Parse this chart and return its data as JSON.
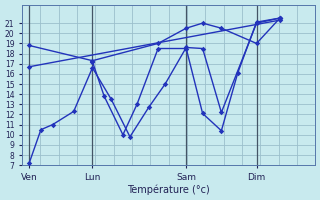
{
  "bg_color": "#c8eaee",
  "grid_color": "#9bbfcc",
  "line_color": "#2233bb",
  "xlabel": "Température (°c)",
  "ylim": [
    7,
    22
  ],
  "yticks": [
    7,
    8,
    9,
    10,
    11,
    12,
    13,
    14,
    15,
    16,
    17,
    18,
    19,
    20,
    21
  ],
  "xtick_labels": [
    "Ven",
    "Lun",
    "Sam",
    "Dim"
  ],
  "vline_positions": [
    0,
    27,
    67,
    97
  ],
  "xtick_positions": [
    0,
    27,
    67,
    97
  ],
  "xmax": 122,
  "series": [
    {
      "x": [
        0,
        5,
        10,
        19,
        27,
        35,
        43,
        51,
        58,
        67,
        74,
        82,
        97,
        107
      ],
      "y": [
        7.2,
        10.5,
        11.0,
        12.3,
        16.6,
        13.5,
        9.8,
        12.7,
        15.0,
        18.6,
        18.5,
        12.2,
        21.0,
        21.5
      ]
    },
    {
      "x": [
        27,
        32,
        40,
        46,
        55,
        67,
        74,
        82,
        89,
        97,
        107
      ],
      "y": [
        17.2,
        13.8,
        10.0,
        13.0,
        18.5,
        18.5,
        12.1,
        10.4,
        16.1,
        21.1,
        21.5
      ]
    },
    {
      "x": [
        0,
        27,
        55,
        67,
        74,
        82,
        97,
        107
      ],
      "y": [
        18.8,
        17.3,
        19.0,
        20.5,
        21.0,
        20.5,
        19.0,
        21.5
      ]
    },
    {
      "x": [
        0,
        107
      ],
      "y": [
        16.7,
        21.3
      ]
    }
  ]
}
